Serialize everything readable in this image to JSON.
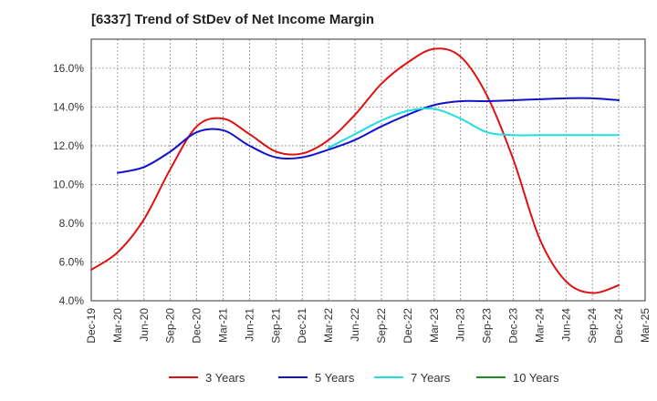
{
  "chart_data": {
    "type": "line",
    "title": "[6337]  Trend of StDev of Net Income Margin",
    "xlabel": "",
    "ylabel": "",
    "x": [
      "Dec-19",
      "Mar-20",
      "Jun-20",
      "Sep-20",
      "Dec-20",
      "Mar-21",
      "Jun-21",
      "Sep-21",
      "Dec-21",
      "Mar-22",
      "Jun-22",
      "Sep-22",
      "Dec-22",
      "Mar-23",
      "Jun-23",
      "Sep-23",
      "Dec-23",
      "Mar-24",
      "Jun-24",
      "Sep-24",
      "Dec-24"
    ],
    "x_ticks": [
      "Dec-19",
      "Mar-20",
      "Jun-20",
      "Sep-20",
      "Dec-20",
      "Mar-21",
      "Jun-21",
      "Sep-21",
      "Dec-21",
      "Mar-22",
      "Jun-22",
      "Sep-22",
      "Dec-22",
      "Mar-23",
      "Jun-23",
      "Sep-23",
      "Dec-23",
      "Mar-24",
      "Jun-24",
      "Sep-24",
      "Dec-24",
      "Mar-25"
    ],
    "y_ticks": [
      "4.0%",
      "6.0%",
      "8.0%",
      "10.0%",
      "12.0%",
      "14.0%",
      "16.0%"
    ],
    "ylim": [
      4.0,
      17.5
    ],
    "y_unit": "%",
    "grid": true,
    "grid_style": "dashed",
    "legend_position": "bottom",
    "series": [
      {
        "name": "3 Years",
        "color": "#dd1111",
        "values": [
          5.6,
          6.5,
          8.2,
          10.8,
          13.0,
          13.4,
          12.6,
          11.7,
          11.6,
          12.3,
          13.6,
          15.2,
          16.3,
          17.0,
          16.6,
          14.6,
          11.3,
          7.2,
          5.0,
          4.4,
          4.8
        ]
      },
      {
        "name": "5 Years",
        "color": "#1111cc",
        "values": [
          null,
          10.6,
          10.9,
          11.7,
          12.7,
          12.8,
          12.0,
          11.4,
          11.4,
          11.8,
          12.3,
          13.0,
          13.6,
          14.1,
          14.3,
          14.3,
          14.35,
          14.4,
          14.45,
          14.45,
          14.35
        ]
      },
      {
        "name": "7 Years",
        "color": "#22dddd",
        "values": [
          null,
          null,
          null,
          null,
          null,
          null,
          null,
          null,
          null,
          11.9,
          12.6,
          13.3,
          13.8,
          13.9,
          13.4,
          12.7,
          12.55,
          12.55,
          12.55,
          12.55,
          12.55
        ]
      },
      {
        "name": "10 Years",
        "color": "#228822",
        "values": [
          null,
          null,
          null,
          null,
          null,
          null,
          null,
          null,
          null,
          null,
          null,
          null,
          null,
          null,
          null,
          null,
          null,
          null,
          null,
          null,
          null
        ]
      }
    ]
  }
}
